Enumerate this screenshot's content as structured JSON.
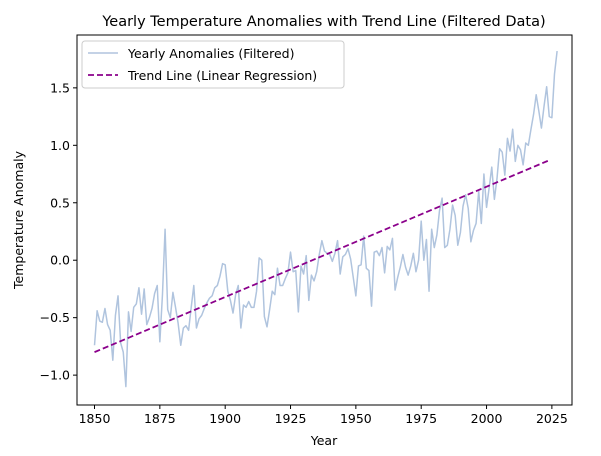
{
  "chart_data": {
    "type": "line",
    "title": "Yearly Temperature Anomalies with Trend Line (Filtered Data)",
    "xlabel": "Year",
    "ylabel": "Temperature Anomaly",
    "xlim": [
      1843.3,
      2032.7
    ],
    "ylim": [
      -1.26,
      1.96
    ],
    "xticks": [
      1850,
      1875,
      1900,
      1925,
      1950,
      1975,
      2000,
      2025
    ],
    "yticks": [
      -1.0,
      -0.5,
      0.0,
      0.5,
      1.0,
      1.5
    ],
    "ytick_labels": [
      "−1.0",
      "−0.5",
      "0.0",
      "0.5",
      "1.0",
      "1.5"
    ],
    "grid": false,
    "legend_position": "upper-left",
    "series": [
      {
        "name": "Yearly Anomalies (Filtered)",
        "style": "solid",
        "color": "#b0c4de",
        "x_start": 1850,
        "x_step": 1,
        "values": [
          -0.74,
          -0.44,
          -0.53,
          -0.54,
          -0.42,
          -0.56,
          -0.61,
          -0.87,
          -0.48,
          -0.31,
          -0.72,
          -0.8,
          -1.1,
          -0.45,
          -0.62,
          -0.41,
          -0.38,
          -0.24,
          -0.47,
          -0.25,
          -0.56,
          -0.5,
          -0.42,
          -0.29,
          -0.22,
          -0.71,
          -0.3,
          0.27,
          -0.43,
          -0.5,
          -0.28,
          -0.41,
          -0.55,
          -0.74,
          -0.59,
          -0.57,
          -0.61,
          -0.41,
          -0.22,
          -0.59,
          -0.51,
          -0.48,
          -0.42,
          -0.37,
          -0.33,
          -0.31,
          -0.24,
          -0.22,
          -0.14,
          -0.03,
          -0.04,
          -0.27,
          -0.35,
          -0.46,
          -0.3,
          -0.22,
          -0.59,
          -0.39,
          -0.41,
          -0.36,
          -0.41,
          -0.41,
          -0.27,
          0.02,
          0.0,
          -0.49,
          -0.58,
          -0.43,
          -0.27,
          -0.3,
          -0.07,
          -0.22,
          -0.22,
          -0.16,
          -0.11,
          0.07,
          -0.1,
          -0.09,
          -0.45,
          -0.05,
          -0.12,
          0.04,
          -0.35,
          -0.13,
          -0.18,
          -0.1,
          0.05,
          0.17,
          0.08,
          0.06,
          0.05,
          -0.01,
          0.06,
          0.17,
          -0.12,
          0.03,
          0.05,
          0.1,
          0.01,
          -0.15,
          -0.31,
          -0.05,
          -0.04,
          0.21,
          -0.07,
          -0.09,
          -0.4,
          0.07,
          0.08,
          0.04,
          0.11,
          -0.11,
          0.12,
          0.09,
          0.19,
          -0.26,
          -0.15,
          -0.06,
          0.05,
          -0.06,
          -0.13,
          -0.05,
          0.06,
          -0.1,
          0.0,
          0.34,
          0.0,
          0.18,
          -0.27,
          0.27,
          0.11,
          0.22,
          0.43,
          0.54,
          0.11,
          0.13,
          0.27,
          0.48,
          0.39,
          0.13,
          0.24,
          0.47,
          0.57,
          0.45,
          0.16,
          0.26,
          0.32,
          0.6,
          0.32,
          0.75,
          0.46,
          0.63,
          0.81,
          0.53,
          0.71,
          0.97,
          0.94,
          0.74,
          1.06,
          0.95,
          1.14,
          0.86,
          1.0,
          0.96,
          0.83,
          1.02,
          1.0,
          1.14,
          1.27,
          1.44,
          1.3,
          1.15,
          1.34,
          1.51,
          1.25,
          1.24,
          1.62,
          1.82
        ]
      },
      {
        "name": "Trend Line (Linear Regression)",
        "style": "dashed",
        "color": "#8b008b",
        "x": [
          1850,
          2024
        ],
        "values": [
          -0.8,
          0.87
        ]
      }
    ]
  }
}
